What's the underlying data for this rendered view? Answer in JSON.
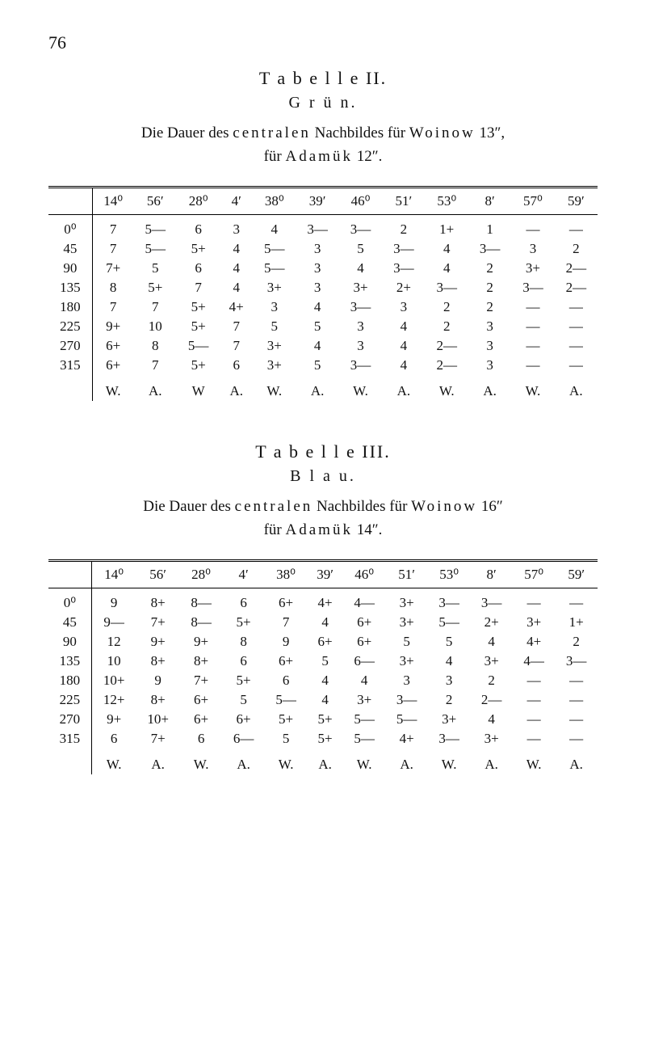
{
  "page_number": "76",
  "table1": {
    "title": "T a b e l l e  II.",
    "subtitle": "G r ü n.",
    "caption_line1_a": "Die Dauer des ",
    "caption_line1_b": "centralen",
    "caption_line1_c": " Nachbildes für ",
    "caption_line1_d": "Woinow",
    "caption_line1_e": " 13″,",
    "caption_line2_a": "für ",
    "caption_line2_b": "Adamük",
    "caption_line2_c": " 12″.",
    "headers": [
      "",
      "14⁰",
      "56′",
      "28⁰",
      "4′",
      "38⁰",
      "39′",
      "46⁰",
      "51′",
      "53⁰",
      "8′",
      "57⁰",
      "59′"
    ],
    "rows": [
      [
        "0⁰",
        "7",
        "5—",
        "6",
        "3",
        "4",
        "3—",
        "3—",
        "2",
        "1+",
        "1",
        "—",
        "—"
      ],
      [
        "45",
        "7",
        "5—",
        "5+",
        "4",
        "5—",
        "3",
        "5",
        "3—",
        "4",
        "3—",
        "3",
        "2"
      ],
      [
        "90",
        "7+",
        "5",
        "6",
        "4",
        "5—",
        "3",
        "4",
        "3—",
        "4",
        "2",
        "3+",
        "2—"
      ],
      [
        "135",
        "8",
        "5+",
        "7",
        "4",
        "3+",
        "3",
        "3+",
        "2+",
        "3—",
        "2",
        "3—",
        "2—"
      ],
      [
        "180",
        "7",
        "7",
        "5+",
        "4+",
        "3",
        "4",
        "3—",
        "3",
        "2",
        "2",
        "—",
        "—"
      ],
      [
        "225",
        "9+",
        "10",
        "5+",
        "7",
        "5",
        "5",
        "3",
        "4",
        "2",
        "3",
        "—",
        "—"
      ],
      [
        "270",
        "6+",
        "8",
        "5—",
        "7",
        "3+",
        "4",
        "3",
        "4",
        "2—",
        "3",
        "—",
        "—"
      ],
      [
        "315",
        "6+",
        "7",
        "5+",
        "6",
        "3+",
        "5",
        "3—",
        "4",
        "2—",
        "3",
        "—",
        "—"
      ]
    ],
    "footer": [
      "",
      "W.",
      "A.",
      "W",
      "A.",
      "W.",
      "A.",
      "W.",
      "A.",
      "W.",
      "A.",
      "W.",
      "A."
    ]
  },
  "table2": {
    "title": "T a b e l l e  III.",
    "subtitle": "B l a u.",
    "caption_line1_a": "Die Dauer des ",
    "caption_line1_b": "centralen",
    "caption_line1_c": " Nachbildes für ",
    "caption_line1_d": "Woinow",
    "caption_line1_e": " 16″",
    "caption_line2_a": "für ",
    "caption_line2_b": "Adamük",
    "caption_line2_c": " 14″.",
    "headers": [
      "",
      "14⁰",
      "56′",
      "28⁰",
      "4′",
      "38⁰",
      "39′",
      "46⁰",
      "51′",
      "53⁰",
      "8′",
      "57⁰",
      "59′"
    ],
    "rows": [
      [
        "0⁰",
        "9",
        "8+",
        "8—",
        "6",
        "6+",
        "4+",
        "4—",
        "3+",
        "3—",
        "3—",
        "—",
        "—"
      ],
      [
        "45",
        "9—",
        "7+",
        "8—",
        "5+",
        "7",
        "4",
        "6+",
        "3+",
        "5—",
        "2+",
        "3+",
        "1+"
      ],
      [
        "90",
        "12",
        "9+",
        "9+",
        "8",
        "9",
        "6+",
        "6+",
        "5",
        "5",
        "4",
        "4+",
        "2"
      ],
      [
        "135",
        "10",
        "8+",
        "8+",
        "6",
        "6+",
        "5",
        "6—",
        "3+",
        "4",
        "3+",
        "4—",
        "3—"
      ],
      [
        "180",
        "10+",
        "9",
        "7+",
        "5+",
        "6",
        "4",
        "4",
        "3",
        "3",
        "2",
        "—",
        "—"
      ],
      [
        "225",
        "12+",
        "8+",
        "6+",
        "5",
        "5—",
        "4",
        "3+",
        "3—",
        "2",
        "2—",
        "—",
        "—"
      ],
      [
        "270",
        "9+",
        "10+",
        "6+",
        "6+",
        "5+",
        "5+",
        "5—",
        "5—",
        "3+",
        "4",
        "—",
        "—"
      ],
      [
        "315",
        "6",
        "7+",
        "6",
        "6—",
        "5",
        "5+",
        "5—",
        "4+",
        "3—",
        "3+",
        "—",
        "—"
      ]
    ],
    "footer": [
      "",
      "W.",
      "A.",
      "W.",
      "A.",
      "W.",
      "A.",
      "W.",
      "A.",
      "W.",
      "A.",
      "W.",
      "A."
    ]
  }
}
